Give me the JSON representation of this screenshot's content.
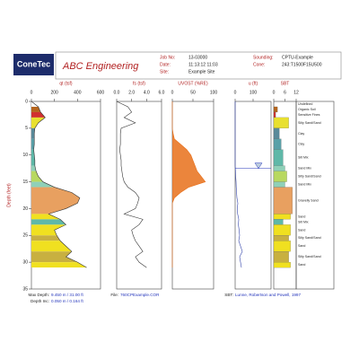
{
  "header": {
    "logo": "ConeTec",
    "company": "ABC Engineering",
    "fields": [
      {
        "label": "Job No:",
        "value": "13-03000"
      },
      {
        "label": "Date:",
        "value": "11:13:12 11:03"
      },
      {
        "label": "Site:",
        "value": "Example Site"
      },
      {
        "label": "Sounding:",
        "value": "CPTU-Example"
      },
      {
        "label": "Cone:",
        "value": "243:T1500F15U500"
      }
    ]
  },
  "footer": {
    "fields": [
      {
        "label": "Max Depth:",
        "value": "9.450 m / 31.00 ft"
      },
      {
        "label": "Depth Inc:",
        "value": "0.050 m / 0.164 ft"
      },
      {
        "label": "File:",
        "value": "760CPExample.COR"
      },
      {
        "label": "SBT:",
        "value": "Lunne, Robertson and Powell, 1997"
      }
    ]
  },
  "chart_data": {
    "type": "cptlog",
    "ylabel": "Depth (feet)",
    "ylim": [
      0,
      35
    ],
    "yticks": [
      0,
      5,
      10,
      15,
      20,
      25,
      30,
      35
    ],
    "depth": [
      0,
      1,
      2,
      3,
      4,
      5,
      6,
      7,
      8,
      9,
      10,
      11,
      12,
      13,
      14,
      15,
      16,
      17,
      18,
      19,
      20,
      21,
      22,
      23,
      24,
      25,
      26,
      27,
      28,
      29,
      30,
      31
    ],
    "water_table_depth": 12.5,
    "tracks": [
      {
        "type": "area",
        "name": "qt (tsf)",
        "color": "#333333",
        "xlim": [
          0,
          600
        ],
        "xticks": [
          0,
          200,
          400,
          600
        ],
        "values": [
          0,
          60,
          80,
          120,
          60,
          30,
          25,
          25,
          25,
          20,
          25,
          30,
          30,
          40,
          60,
          100,
          200,
          350,
          420,
          400,
          300,
          150,
          250,
          300,
          200,
          220,
          250,
          300,
          350,
          300,
          400,
          480
        ]
      },
      {
        "type": "line",
        "name": "fs (tsf)",
        "color": "#333333",
        "xlim": [
          0,
          6
        ],
        "xticks": [
          {
            "value": 0,
            "label": "0.0"
          },
          {
            "value": 2,
            "label": "2.0"
          },
          {
            "value": 4,
            "label": "4.0"
          },
          {
            "value": 6,
            "label": "6.0"
          }
        ],
        "values": [
          0,
          1.5,
          2.0,
          1.0,
          2.5,
          0.6,
          0.5,
          0.5,
          0.5,
          0.4,
          0.5,
          0.6,
          0.6,
          0.7,
          0.8,
          1.0,
          1.5,
          2.5,
          3.0,
          2.8,
          2.5,
          1.0,
          3.5,
          3.0,
          2.0,
          2.2,
          2.5,
          3.0,
          3.5,
          2.5,
          3.0,
          4.0
        ]
      },
      {
        "type": "uvost",
        "name": "UVOST (%RE)",
        "color": "#e8701a",
        "xlim": [
          0,
          100
        ],
        "xticks": [
          0,
          50,
          100
        ],
        "values": [
          0,
          0,
          0,
          0,
          0,
          0,
          2,
          5,
          20,
          35,
          45,
          50,
          55,
          60,
          70,
          80,
          40,
          20,
          5,
          0,
          0,
          0,
          0,
          0,
          0,
          0,
          0,
          0,
          0,
          0,
          0,
          0
        ]
      },
      {
        "type": "line",
        "name": "u (ft)",
        "color": "#3344aa",
        "xlim": [
          0,
          200
        ],
        "xticks": [
          0,
          100
        ],
        "values": [
          0,
          0,
          0,
          0,
          0,
          0,
          0,
          0,
          0,
          0,
          0,
          0,
          0,
          2,
          3,
          5,
          6,
          8,
          10,
          15,
          12,
          14,
          20,
          18,
          22,
          25,
          20,
          30,
          40,
          25,
          30,
          35
        ]
      }
    ],
    "sbt": {
      "name": "SBT",
      "xlim": [
        0,
        12
      ],
      "xticks": [
        0,
        6,
        12
      ],
      "intervals": [
        {
          "top": 0,
          "bottom": 1,
          "zone": 0,
          "label": "Undefined",
          "color": "#ffffff"
        },
        {
          "top": 1,
          "bottom": 2,
          "zone": 2,
          "label": "Organic Soil",
          "color": "#b5651d"
        },
        {
          "top": 2,
          "bottom": 3,
          "zone": 1,
          "label": "Sensitive Fines",
          "color": "#d03030"
        },
        {
          "top": 3,
          "bottom": 5,
          "zone": 8,
          "label": "Silty Sand/Sand",
          "color": "#e8e030"
        },
        {
          "top": 5,
          "bottom": 7,
          "zone": 3,
          "label": "Clay",
          "color": "#5a8a9a"
        },
        {
          "top": 7,
          "bottom": 9,
          "zone": 4,
          "label": "Clay",
          "color": "#5aa0a8"
        },
        {
          "top": 9,
          "bottom": 12,
          "zone": 5,
          "label": "Silt Mix",
          "color": "#5fb8a8"
        },
        {
          "top": 12,
          "bottom": 13,
          "zone": 6,
          "label": "Sand Mix",
          "color": "#8fd0b8"
        },
        {
          "top": 13,
          "bottom": 15,
          "zone": 7,
          "label": "Silty Sand/Sand",
          "color": "#b8d860"
        },
        {
          "top": 15,
          "bottom": 16,
          "zone": 6,
          "label": "Sand Mix",
          "color": "#8fd0b8"
        },
        {
          "top": 16,
          "bottom": 21,
          "zone": 10,
          "label": "Gravelly Sand",
          "color": "#e8a060"
        },
        {
          "top": 21,
          "bottom": 22,
          "zone": 9,
          "label": "Sand",
          "color": "#f0e020"
        },
        {
          "top": 22,
          "bottom": 23,
          "zone": 5,
          "label": "Silt Mix",
          "color": "#5fb8a8"
        },
        {
          "top": 23,
          "bottom": 25,
          "zone": 9,
          "label": "Sand",
          "color": "#f0e020"
        },
        {
          "top": 25,
          "bottom": 26,
          "zone": 8,
          "label": "Silty Sand/Sand",
          "color": "#c8b040"
        },
        {
          "top": 26,
          "bottom": 28,
          "zone": 9,
          "label": "Sand",
          "color": "#f0e020"
        },
        {
          "top": 28,
          "bottom": 30,
          "zone": 8,
          "label": "Silty Sand/Sand",
          "color": "#c8b040"
        },
        {
          "top": 30,
          "bottom": 31,
          "zone": 9,
          "label": "Sand",
          "color": "#f0e020"
        }
      ]
    }
  }
}
